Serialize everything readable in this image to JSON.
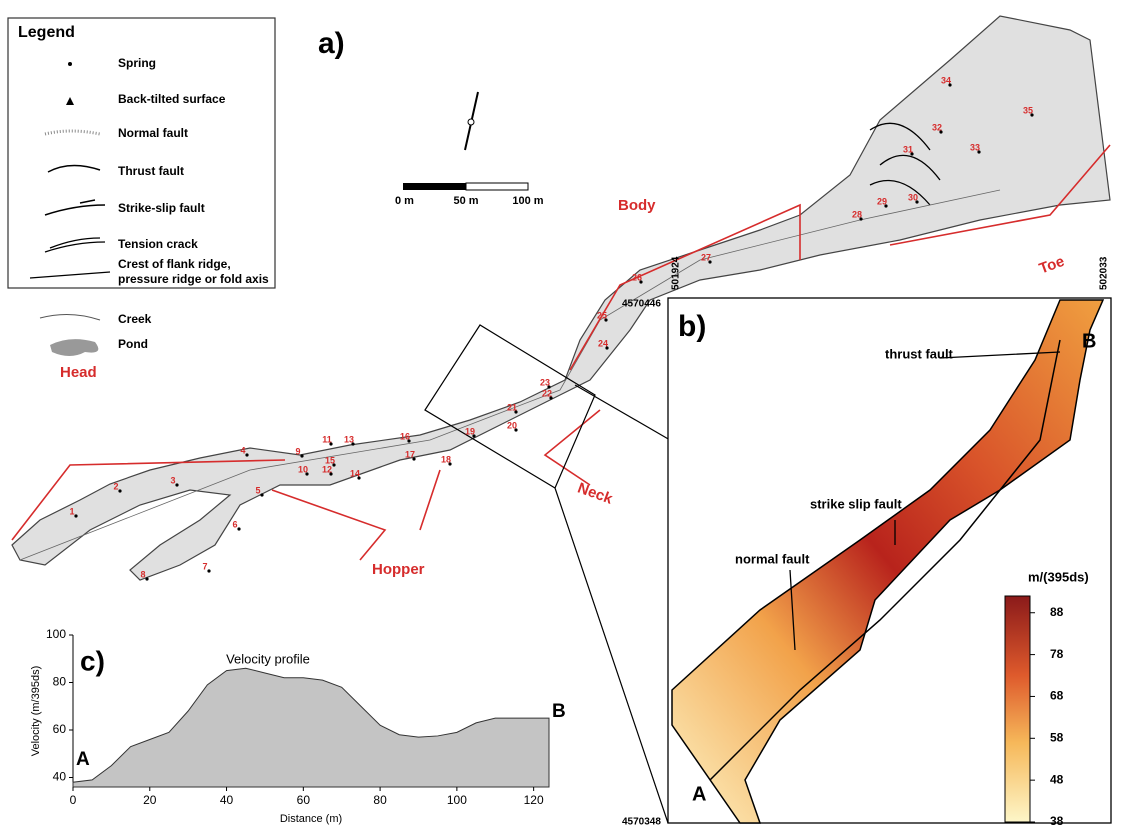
{
  "legend": {
    "title": "Legend",
    "items": [
      [
        "Spring"
      ],
      [
        "Back-tilted surface"
      ],
      [
        "Normal fault"
      ],
      [
        "Thrust fault"
      ],
      [
        "Strike-slip fault"
      ],
      [
        "Tension crack"
      ],
      [
        "Crest of flank ridge,",
        "pressure ridge or fold axis"
      ],
      [
        "Creek"
      ],
      [
        "Pond"
      ]
    ]
  },
  "panel_a": {
    "label": "a)",
    "scale_bar": [
      "0 m",
      "50 m",
      "100 m"
    ],
    "zones": [
      "Head",
      "Hopper",
      "Neck",
      "Body",
      "Toe"
    ],
    "springs": [
      1,
      2,
      3,
      4,
      5,
      6,
      7,
      8,
      9,
      10,
      11,
      12,
      13,
      14,
      15,
      16,
      17,
      18,
      19,
      20,
      21,
      22,
      23,
      24,
      25,
      26,
      27,
      28,
      29,
      30,
      31,
      32,
      33,
      34,
      35
    ]
  },
  "panel_b": {
    "label": "b)",
    "coords": {
      "left": "501924",
      "right": "502033",
      "top": "4570446",
      "bottom": "4570348"
    },
    "annotations": [
      "thrust fault",
      "strike slip fault",
      "normal fault"
    ],
    "points": [
      "A",
      "B"
    ],
    "colorbar": {
      "title": "m/(395ds)",
      "lim": [
        38,
        92
      ],
      "ticks": [
        88,
        78,
        68,
        58,
        48,
        38
      ]
    }
  },
  "chart_data": {
    "type": "area",
    "panel_label": "c)",
    "title": "Velocity profile",
    "xlabel": "Distance (m)",
    "ylabel": "Velocity (m/395ds)",
    "x": [
      0,
      5,
      10,
      15,
      20,
      25,
      30,
      35,
      40,
      45,
      50,
      55,
      60,
      65,
      70,
      75,
      80,
      85,
      90,
      95,
      100,
      105,
      110,
      115,
      120,
      124
    ],
    "values": [
      38,
      39,
      45,
      53,
      56,
      59,
      68,
      79,
      85,
      86,
      84,
      82,
      82,
      81,
      78,
      70,
      62,
      58,
      57,
      57.5,
      59,
      63,
      65,
      65,
      65,
      65
    ],
    "color": "#c4c4c4",
    "xlim": [
      0,
      124
    ],
    "ylim": [
      36,
      100
    ],
    "xticks": [
      0,
      20,
      40,
      60,
      80,
      100,
      120
    ],
    "yticks": [
      40,
      60,
      80,
      100
    ],
    "annotations": [
      "A",
      "B"
    ]
  }
}
